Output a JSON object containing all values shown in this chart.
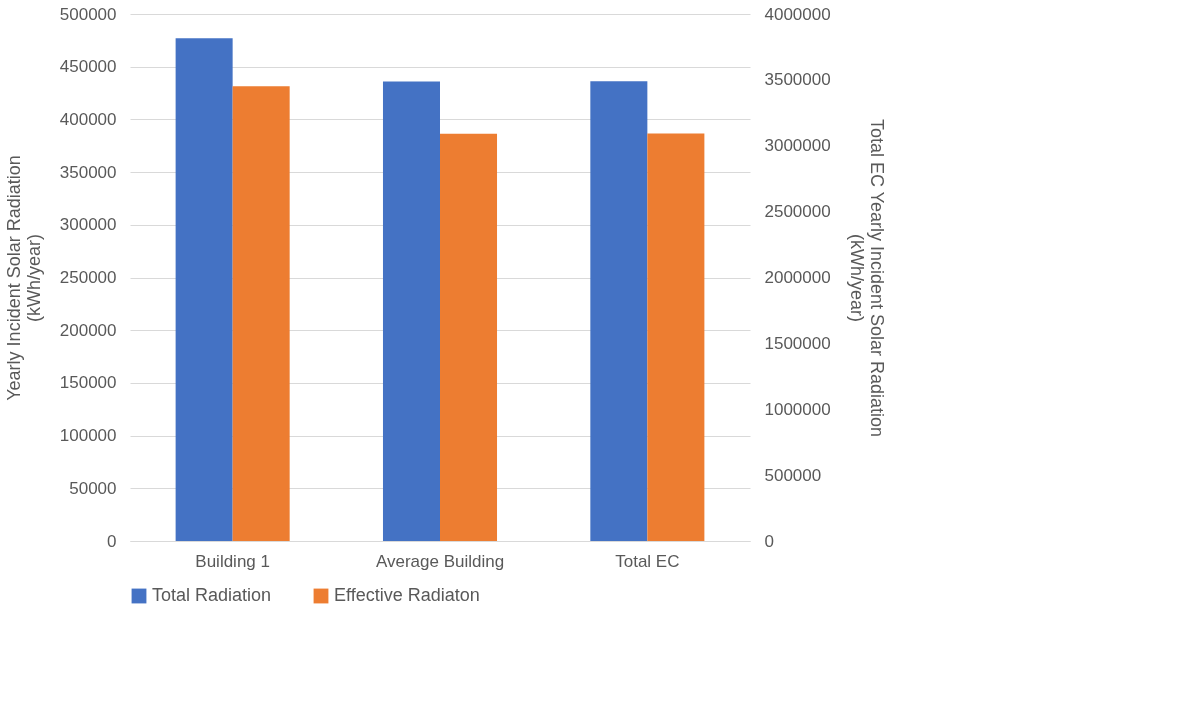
{
  "chart_data": {
    "type": "bar",
    "categories": [
      "Building 1",
      "Average Building",
      "Total EC"
    ],
    "ylabel": "Yearly Incident Solar Radiation (kWh/year)",
    "y2label": "Total EC Yearly Incident Solar Radiation (kWh/year)",
    "ylim": [
      0,
      500000
    ],
    "yticks": [
      0,
      50000,
      100000,
      150000,
      200000,
      250000,
      300000,
      350000,
      400000,
      450000,
      500000
    ],
    "y2lim": [
      0,
      4000000
    ],
    "y2ticks": [
      0,
      500000,
      1000000,
      1500000,
      2000000,
      2500000,
      3000000,
      3500000,
      4000000
    ],
    "grid": "y",
    "legend": "bottom",
    "series": [
      {
        "name": "Total Radiation",
        "color": "#4472c4",
        "values": [
          477000,
          436000,
          null
        ]
      },
      {
        "name": "Effective Radiaton",
        "color": "#ed7d31",
        "values": [
          431500,
          386500,
          null
        ]
      },
      {
        "color": "#4472c4",
        "axis": "y2",
        "values": [
          null,
          null,
          3490000
        ]
      },
      {
        "color": "#ed7d31",
        "axis": "y2",
        "values": [
          null,
          null,
          3093000
        ]
      }
    ]
  }
}
